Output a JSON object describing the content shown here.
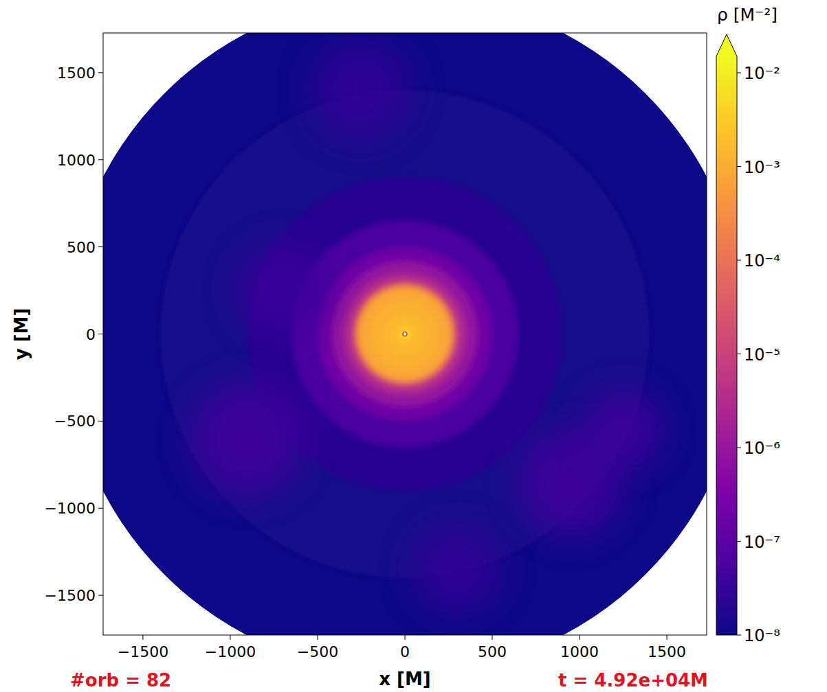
{
  "chart_data": {
    "type": "density_map",
    "x_label": "x [M]",
    "y_label": "y [M]",
    "xlim": [
      -1728,
      1728
    ],
    "ylim": [
      -1728,
      1728
    ],
    "xticks": [
      {
        "value": -1500,
        "label": "−1500"
      },
      {
        "value": -1000,
        "label": "−1000"
      },
      {
        "value": -500,
        "label": "−500"
      },
      0,
      500,
      1000,
      1500
    ],
    "yticks": [
      {
        "value": -1500,
        "label": "−1500"
      },
      {
        "value": -1000,
        "label": "−1000"
      },
      {
        "value": -500,
        "label": "−500"
      },
      0,
      500,
      1000,
      1500
    ],
    "outer_radius": 1950,
    "cavity_radius": 12,
    "radial_profile": {
      "radius": [
        1950,
        1400,
        900,
        650,
        500,
        420,
        350,
        300,
        275,
        200,
        120,
        60,
        30,
        18
      ],
      "density": [
        1e-08,
        1.2e-08,
        2e-08,
        6e-08,
        2e-07,
        8e-07,
        3e-06,
        3e-05,
        0.0008,
        0.0012,
        0.0015,
        0.002,
        0.004,
        0.01
      ]
    },
    "clumps": {
      "x": [
        -900,
        950,
        -250,
        1250,
        -700,
        300
      ],
      "y": [
        -600,
        -850,
        1400,
        -550,
        250,
        -1350
      ],
      "radius": [
        320,
        300,
        280,
        220,
        260,
        250
      ],
      "density": [
        5e-08,
        5e-08,
        3e-08,
        5e-08,
        4e-08,
        3e-08
      ]
    },
    "colorbar": {
      "label": "ρ [M⁻²]",
      "range": [
        1e-08,
        0.015
      ],
      "log": true,
      "ticks": [
        {
          "value": 0.01,
          "label": "10⁻²"
        },
        {
          "value": 0.001,
          "label": "10⁻³"
        },
        {
          "value": 0.0001,
          "label": "10⁻⁴"
        },
        {
          "value": 1e-05,
          "label": "10⁻⁵"
        },
        {
          "value": 1e-06,
          "label": "10⁻⁶"
        },
        {
          "value": 1e-07,
          "label": "10⁻⁷"
        },
        {
          "value": 1e-08,
          "label": "10⁻⁸"
        }
      ]
    },
    "annotations": [
      "#orb = 82",
      "t = 4.92e+04M"
    ]
  }
}
